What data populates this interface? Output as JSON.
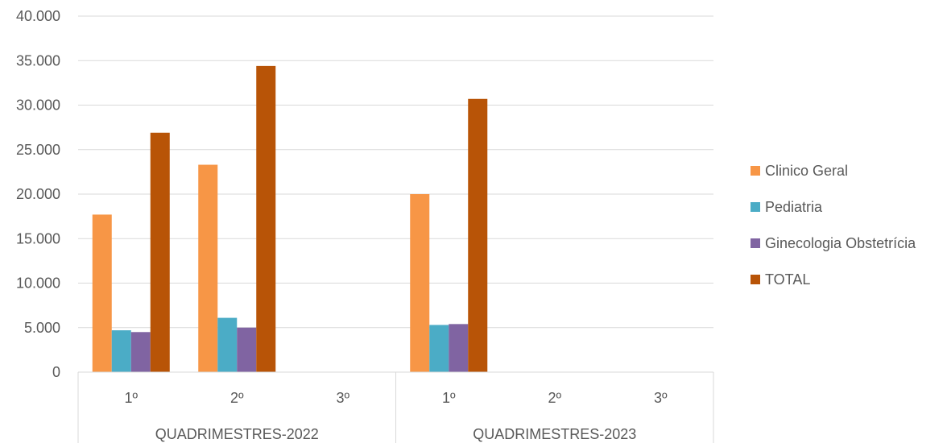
{
  "chart_data": {
    "type": "bar",
    "title": "",
    "xlabel": "",
    "ylabel": "",
    "ylim": [
      0,
      40000
    ],
    "yticks": [
      0,
      5000,
      10000,
      15000,
      20000,
      25000,
      30000,
      35000,
      40000
    ],
    "ytick_labels": [
      "0",
      "5.000",
      "10.000",
      "15.000",
      "20.000",
      "25.000",
      "30.000",
      "35.000",
      "40.000"
    ],
    "grid": true,
    "legend_position": "right",
    "groups": [
      {
        "label": "QUADRIMESTRES-2022",
        "categories": [
          "1º",
          "2º",
          "3º"
        ]
      },
      {
        "label": "QUADRIMESTRES-2023",
        "categories": [
          "1º",
          "2º",
          "3º"
        ]
      }
    ],
    "series": [
      {
        "name": "Clinico Geral",
        "color": "#F79646",
        "values": [
          17700,
          23300,
          null,
          20000,
          null,
          null
        ]
      },
      {
        "name": "Pediatria",
        "color": "#4BACC6",
        "values": [
          4700,
          6100,
          null,
          5300,
          null,
          null
        ]
      },
      {
        "name": "Ginecologia Obstetrícia",
        "color": "#8064A2",
        "values": [
          4500,
          5000,
          null,
          5400,
          null,
          null
        ]
      },
      {
        "name": "TOTAL",
        "color": "#B85407",
        "values": [
          26900,
          34400,
          null,
          30700,
          null,
          null
        ]
      }
    ]
  }
}
